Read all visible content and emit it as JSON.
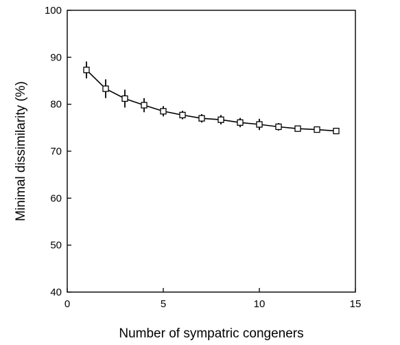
{
  "chart_data": {
    "type": "line",
    "title": "",
    "xlabel": "Number of sympatric congeners",
    "ylabel": "Minimal dissimilarity (%)",
    "xlim": [
      0,
      15
    ],
    "ylim": [
      40,
      100
    ],
    "xticks": [
      0,
      5,
      10,
      15
    ],
    "yticks": [
      40,
      50,
      60,
      70,
      80,
      90,
      100
    ],
    "grid": false,
    "marker": "open-square",
    "series": [
      {
        "x": [
          1,
          2,
          3,
          4,
          5,
          6,
          7,
          8,
          9,
          10,
          11,
          12,
          13,
          14
        ],
        "y": [
          87.3,
          83.3,
          81.2,
          79.8,
          78.5,
          77.7,
          77.0,
          76.7,
          76.1,
          75.7,
          75.2,
          74.8,
          74.6,
          74.3
        ],
        "err": [
          1.8,
          2.0,
          1.9,
          1.5,
          1.1,
          0.9,
          0.9,
          1.0,
          1.0,
          1.2,
          0.8,
          0.5,
          0.5,
          0.4
        ]
      }
    ]
  }
}
